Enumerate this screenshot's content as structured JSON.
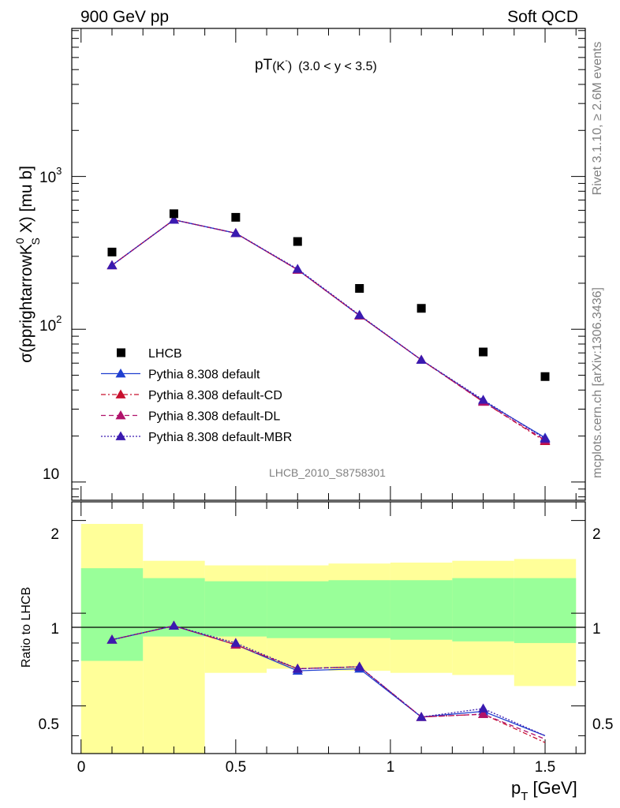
{
  "header": {
    "left": "900 GeV pp",
    "right": "Soft QCD"
  },
  "side": {
    "rivet": "Rivet 3.1.10, ≥ 2.6M events",
    "mcplots": "mcplots.cern.ch [arXiv:1306.3436]"
  },
  "main": {
    "title_main": "pT",
    "title_particle": "(K",
    "title_super": "-",
    "title_close": ")",
    "title_range": "(3.0 < y < 3.5)",
    "ylabel": "σ(pprightarrowK",
    "ylabel_sup": "0",
    "ylabel_sub": "S",
    "ylabel_end": " X) [mu b]",
    "watermark": "LHCB_2010_S8758301",
    "ytick_labels": [
      {
        "base": "10",
        "exp": "3"
      },
      {
        "base": "10",
        "exp": "2"
      },
      {
        "base": "10",
        "exp": ""
      }
    ]
  },
  "ratio": {
    "ylabel": "Ratio to LHCB",
    "ytick_labels": [
      "2",
      "1",
      "0.5"
    ],
    "xtick_labels": [
      "0",
      "0.5",
      "1",
      "1.5"
    ],
    "xlabel": "p",
    "xlabel_sub": "T",
    "xlabel_unit": " [GeV]"
  },
  "chart_data": {
    "type": "scatter",
    "xlabel": "pT [GeV]",
    "ylabel": "σ(pprightarrowK0S X) [mu b]",
    "xlim": [
      -0.03,
      1.63
    ],
    "ylim": [
      7.6,
      9300
    ],
    "yscale": "log",
    "ratio_ylim": [
      0.35,
      2.3
    ],
    "x": [
      0.1,
      0.3,
      0.5,
      0.7,
      0.9,
      1.1,
      1.3,
      1.5
    ],
    "legend": [
      {
        "name": "LHCB",
        "marker": "square",
        "color": "#000000",
        "dash": "none"
      },
      {
        "name": "Pythia 8.308 default",
        "marker": "triangle",
        "color": "#1f3fd0",
        "dash": "solid"
      },
      {
        "name": "Pythia 8.308 default-CD",
        "marker": "triangle",
        "color": "#c8102e",
        "dash": "dashdot"
      },
      {
        "name": "Pythia 8.308 default-DL",
        "marker": "triangle",
        "color": "#b0126a",
        "dash": "dashed"
      },
      {
        "name": "Pythia 8.308 default-MBR",
        "marker": "triangle",
        "color": "#3a1ab0",
        "dash": "dotted"
      }
    ],
    "data": {
      "name": "LHCB",
      "values": [
        320,
        570,
        540,
        375,
        185,
        137,
        71,
        49
      ]
    },
    "series": [
      {
        "name": "Pythia 8.308 default",
        "values": [
          262,
          520,
          425,
          245,
          123,
          63,
          34,
          19.5
        ]
      },
      {
        "name": "Pythia 8.308 default-CD",
        "values": [
          262,
          520,
          425,
          245,
          123,
          63,
          33.5,
          18.5
        ]
      },
      {
        "name": "Pythia 8.308 default-DL",
        "values": [
          262,
          520,
          425,
          245,
          123,
          63,
          33.5,
          18.8
        ]
      },
      {
        "name": "Pythia 8.308 default-MBR",
        "values": [
          262,
          520,
          425,
          248,
          124,
          63,
          34.5,
          19.2
        ]
      }
    ],
    "ratio_series": [
      {
        "name": "Pythia 8.308 default",
        "values": [
          0.82,
          0.91,
          0.79,
          0.65,
          0.66,
          0.46,
          0.48,
          0.4
        ]
      },
      {
        "name": "Pythia 8.308 default-CD",
        "values": [
          0.82,
          0.91,
          0.79,
          0.66,
          0.67,
          0.46,
          0.47,
          0.38
        ]
      },
      {
        "name": "Pythia 8.308 default-DL",
        "values": [
          0.82,
          0.91,
          0.79,
          0.66,
          0.67,
          0.46,
          0.47,
          0.39
        ]
      },
      {
        "name": "Pythia 8.308 default-MBR",
        "values": [
          0.82,
          0.91,
          0.8,
          0.66,
          0.67,
          0.46,
          0.49,
          0.4
        ]
      }
    ],
    "ratio_bands": {
      "bin_edges": [
        0.0,
        0.2,
        0.4,
        0.6,
        0.8,
        1.0,
        1.2,
        1.4,
        1.6
      ],
      "inner": [
        [
          0.7,
          1.4
        ],
        [
          0.84,
          1.3
        ],
        [
          0.84,
          1.27
        ],
        [
          0.83,
          1.27
        ],
        [
          0.83,
          1.28
        ],
        [
          0.82,
          1.28
        ],
        [
          0.81,
          1.3
        ],
        [
          0.8,
          1.3
        ]
      ],
      "outer": [
        [
          0.35,
          1.95
        ],
        [
          0.35,
          1.48
        ],
        [
          0.64,
          1.43
        ],
        [
          0.66,
          1.43
        ],
        [
          0.65,
          1.45
        ],
        [
          0.64,
          1.46
        ],
        [
          0.63,
          1.48
        ],
        [
          0.58,
          1.5
        ]
      ],
      "inner_color": "#99ff99",
      "outer_color": "#ffff99"
    }
  }
}
